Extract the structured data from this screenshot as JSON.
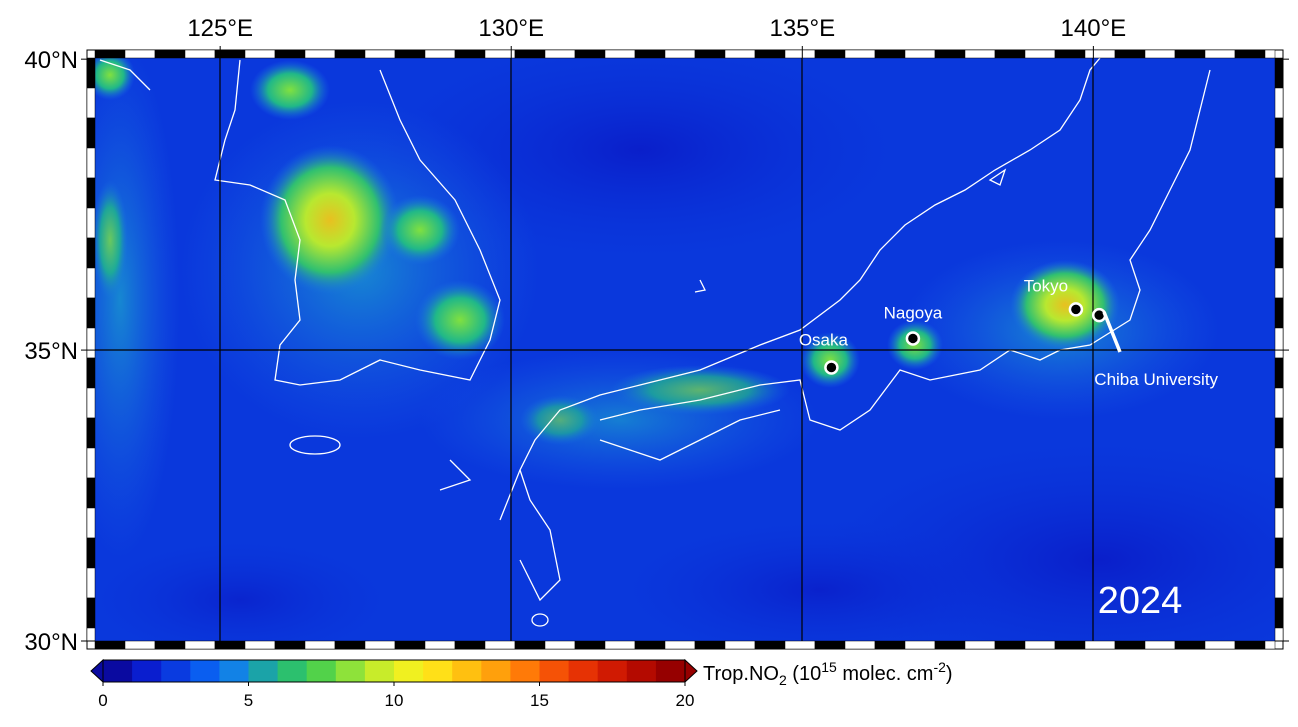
{
  "map": {
    "year": "2024",
    "lon_ticks": [
      {
        "value": 125,
        "label": "125°E"
      },
      {
        "value": 130,
        "label": "130°E"
      },
      {
        "value": 135,
        "label": "135°E"
      },
      {
        "value": 140,
        "label": "140°E"
      }
    ],
    "lat_ticks": [
      {
        "value": 40,
        "label": "40°N"
      },
      {
        "value": 35,
        "label": "35°N"
      },
      {
        "value": 30,
        "label": "30°N"
      }
    ],
    "cities": [
      {
        "name": "Osaka",
        "lon": 135.5,
        "lat": 34.7
      },
      {
        "name": "Nagoya",
        "lon": 136.9,
        "lat": 35.2
      },
      {
        "name": "Tokyo",
        "lon": 139.7,
        "lat": 35.7
      },
      {
        "name": "Chiba University",
        "lon": 140.1,
        "lat": 35.6
      }
    ],
    "colors": {
      "background_low": "#0a2fd8",
      "coastline": "#ffffff",
      "grid": "#000000"
    }
  },
  "colorbar": {
    "title_prefix": "Trop.NO",
    "title_sub": "2",
    "title_mid": " (10",
    "title_sup1": "15",
    "title_unit": " molec. cm",
    "title_sup2": "-2",
    "title_end": ")",
    "min": 0,
    "max": 20,
    "ticks": [
      {
        "value": 0,
        "label": "0"
      },
      {
        "value": 5,
        "label": "5"
      },
      {
        "value": 10,
        "label": "10"
      },
      {
        "value": 15,
        "label": "15"
      },
      {
        "value": 20,
        "label": "20"
      }
    ],
    "colors": [
      "#0a0aa0",
      "#0a1ecf",
      "#0a3be0",
      "#0a5ef0",
      "#1282e6",
      "#1ba3a8",
      "#2cc06e",
      "#52d24a",
      "#8ee23a",
      "#c8ec2a",
      "#f0f020",
      "#ffe018",
      "#ffc010",
      "#ffa00c",
      "#ff7a08",
      "#f55206",
      "#e63204",
      "#d01a02",
      "#b40a00",
      "#960000"
    ]
  }
}
